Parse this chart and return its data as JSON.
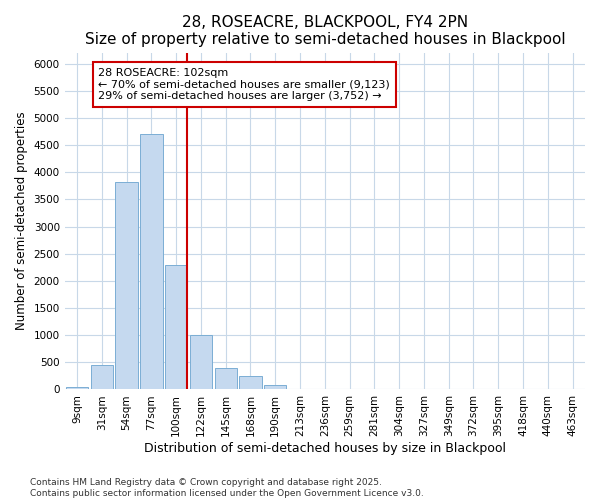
{
  "title": "28, ROSEACRE, BLACKPOOL, FY4 2PN",
  "subtitle": "Size of property relative to semi-detached houses in Blackpool",
  "xlabel": "Distribution of semi-detached houses by size in Blackpool",
  "ylabel": "Number of semi-detached properties",
  "categories": [
    "9sqm",
    "31sqm",
    "54sqm",
    "77sqm",
    "100sqm",
    "122sqm",
    "145sqm",
    "168sqm",
    "190sqm",
    "213sqm",
    "236sqm",
    "259sqm",
    "281sqm",
    "304sqm",
    "327sqm",
    "349sqm",
    "372sqm",
    "395sqm",
    "418sqm",
    "440sqm",
    "463sqm"
  ],
  "values": [
    50,
    450,
    3820,
    4700,
    2300,
    1000,
    400,
    250,
    75,
    0,
    0,
    0,
    0,
    0,
    0,
    0,
    0,
    0,
    0,
    0,
    0
  ],
  "bar_color": "#c5d9ef",
  "bar_edge_color": "#7baed4",
  "vline_color": "#cc0000",
  "vline_index": 4,
  "annotation_text": "28 ROSEACRE: 102sqm\n← 70% of semi-detached houses are smaller (9,123)\n29% of semi-detached houses are larger (3,752) →",
  "annotation_box_facecolor": "#ffffff",
  "annotation_box_edgecolor": "#cc0000",
  "ylim": [
    0,
    6200
  ],
  "yticks": [
    0,
    500,
    1000,
    1500,
    2000,
    2500,
    3000,
    3500,
    4000,
    4500,
    5000,
    5500,
    6000
  ],
  "title_fontsize": 11,
  "subtitle_fontsize": 9.5,
  "xlabel_fontsize": 9,
  "ylabel_fontsize": 8.5,
  "tick_fontsize": 7.5,
  "annotation_fontsize": 8,
  "footer_text": "Contains HM Land Registry data © Crown copyright and database right 2025.\nContains public sector information licensed under the Open Government Licence v3.0.",
  "bg_color": "#ffffff",
  "plot_bg_color": "#ffffff",
  "grid_color": "#c8d8e8"
}
